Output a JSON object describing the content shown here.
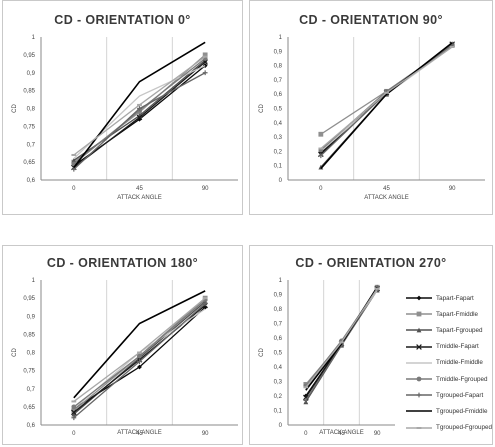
{
  "colors": {
    "Tapart-Fapart": "#0a0a0a",
    "Tapart-Fmiddle": "#8f8f8f",
    "Tapart-Fgrouped": "#505050",
    "Tmiddle-Fapart": "#1a1a1a",
    "Tmiddle-Fmiddle": "#c6c6c6",
    "Tmiddle-Fgrouped": "#7a7a7a",
    "Tgrouped-Fapart": "#666666",
    "Tgrouped-Fmiddle": "#000000",
    "Tgrouped-Fgrouped": "#a8a8a8"
  },
  "legend": {
    "entries": [
      {
        "label": "Tapart-Fapart",
        "marker": "diamond"
      },
      {
        "label": "Tapart-Fmiddle",
        "marker": "square"
      },
      {
        "label": "Tapart-Fgrouped",
        "marker": "triangle"
      },
      {
        "label": "Tmiddle-Fapart",
        "marker": "x"
      },
      {
        "label": "Tmiddle-Fmiddle",
        "marker": "none"
      },
      {
        "label": "Tmiddle-Fgrouped",
        "marker": "circle"
      },
      {
        "label": "Tgrouped-Fapart",
        "marker": "plus"
      },
      {
        "label": "Tgrouped-Fmiddle",
        "marker": "none"
      },
      {
        "label": "Tgrouped-Fgrouped",
        "marker": "dash"
      }
    ]
  },
  "chart_data": [
    {
      "type": "line",
      "title": "CD - ORIENTATION 0°",
      "xlabel": "ATTACK ANGLE",
      "ylabel": "CD",
      "categories": [
        "0",
        "45",
        "90"
      ],
      "ylim": [
        0.6,
        1.0
      ],
      "yticks": [
        "0,6",
        "0,65",
        "0,7",
        "0,75",
        "0,8",
        "0,85",
        "0,9",
        "0,95",
        "1"
      ],
      "grid": "vertical",
      "series": [
        {
          "name": "Tapart-Fapart",
          "values": [
            0.64,
            0.77,
            0.92
          ]
        },
        {
          "name": "Tapart-Fmiddle",
          "values": [
            0.65,
            0.79,
            0.95
          ]
        },
        {
          "name": "Tapart-Fgrouped",
          "values": [
            0.655,
            0.78,
            0.935
          ]
        },
        {
          "name": "Tmiddle-Fapart",
          "values": [
            0.635,
            0.775,
            0.93
          ]
        },
        {
          "name": "Tmiddle-Fmiddle",
          "values": [
            0.66,
            0.835,
            0.92
          ]
        },
        {
          "name": "Tmiddle-Fgrouped",
          "values": [
            0.645,
            0.795,
            0.94
          ]
        },
        {
          "name": "Tgrouped-Fapart",
          "values": [
            0.63,
            0.8,
            0.9
          ]
        },
        {
          "name": "Tgrouped-Fmiddle",
          "values": [
            0.635,
            0.875,
            0.985
          ]
        },
        {
          "name": "Tgrouped-Fgrouped",
          "values": [
            0.67,
            0.81,
            0.945
          ]
        }
      ]
    },
    {
      "type": "line",
      "title": "CD - ORIENTATION 90°",
      "xlabel": "ATTACK ANGLE",
      "ylabel": "CD",
      "categories": [
        "0",
        "45",
        "90"
      ],
      "ylim": [
        0,
        1.0
      ],
      "yticks": [
        "0",
        "0,1",
        "0,2",
        "0,3",
        "0,4",
        "0,5",
        "0,6",
        "0,7",
        "0,8",
        "0,9",
        "1"
      ],
      "grid": "vertical",
      "series": [
        {
          "name": "Tapart-Fapart",
          "values": [
            0.19,
            0.61,
            0.95
          ]
        },
        {
          "name": "Tapart-Fmiddle",
          "values": [
            0.32,
            0.62,
            0.94
          ]
        },
        {
          "name": "Tapart-Fgrouped",
          "values": [
            0.09,
            0.6,
            0.94
          ]
        },
        {
          "name": "Tmiddle-Fapart",
          "values": [
            0.18,
            0.61,
            0.95
          ]
        },
        {
          "name": "Tmiddle-Fmiddle",
          "values": [
            0.2,
            0.6,
            0.93
          ]
        },
        {
          "name": "Tmiddle-Fgrouped",
          "values": [
            0.21,
            0.62,
            0.94
          ]
        },
        {
          "name": "Tgrouped-Fapart",
          "values": [
            0.17,
            0.61,
            0.95
          ]
        },
        {
          "name": "Tgrouped-Fmiddle",
          "values": [
            0.08,
            0.6,
            0.96
          ]
        },
        {
          "name": "Tgrouped-Fgrouped",
          "values": [
            0.22,
            0.61,
            0.93
          ]
        }
      ]
    },
    {
      "type": "line",
      "title": "CD - ORIENTATION 180°",
      "xlabel": "ATTACK ANGLE",
      "ylabel": "CD",
      "categories": [
        "0",
        "45",
        "90"
      ],
      "ylim": [
        0.6,
        1.0
      ],
      "yticks": [
        "0,6",
        "0,65",
        "0,7",
        "0,75",
        "0,8",
        "0,85",
        "0,9",
        "0,95",
        "1"
      ],
      "grid": "vertical",
      "series": [
        {
          "name": "Tapart-Fapart",
          "values": [
            0.645,
            0.76,
            0.925
          ]
        },
        {
          "name": "Tapart-Fmiddle",
          "values": [
            0.64,
            0.79,
            0.95
          ]
        },
        {
          "name": "Tapart-Fgrouped",
          "values": [
            0.63,
            0.785,
            0.94
          ]
        },
        {
          "name": "Tmiddle-Fapart",
          "values": [
            0.635,
            0.78,
            0.93
          ]
        },
        {
          "name": "Tmiddle-Fmiddle",
          "values": [
            0.645,
            0.8,
            0.92
          ]
        },
        {
          "name": "Tmiddle-Fgrouped",
          "values": [
            0.65,
            0.79,
            0.945
          ]
        },
        {
          "name": "Tgrouped-Fapart",
          "values": [
            0.62,
            0.775,
            0.935
          ]
        },
        {
          "name": "Tgrouped-Fmiddle",
          "values": [
            0.675,
            0.88,
            0.97
          ]
        },
        {
          "name": "Tgrouped-Fgrouped",
          "values": [
            0.665,
            0.8,
            0.95
          ]
        }
      ]
    },
    {
      "type": "line",
      "title": "CD - ORIENTATION 270°",
      "xlabel": "ATTACK ANGLE",
      "ylabel": "CD",
      "categories": [
        "0",
        "45",
        "90"
      ],
      "ylim": [
        0,
        1.0
      ],
      "yticks": [
        "0",
        "0,1",
        "0,2",
        "0,3",
        "0,4",
        "0,5",
        "0,6",
        "0,7",
        "0,8",
        "0,9",
        "1"
      ],
      "grid": "vertical",
      "series": [
        {
          "name": "Tapart-Fapart",
          "values": [
            0.2,
            0.56,
            0.94
          ]
        },
        {
          "name": "Tapart-Fmiddle",
          "values": [
            0.28,
            0.57,
            0.95
          ]
        },
        {
          "name": "Tapart-Fgrouped",
          "values": [
            0.16,
            0.55,
            0.93
          ]
        },
        {
          "name": "Tmiddle-Fapart",
          "values": [
            0.19,
            0.56,
            0.94
          ]
        },
        {
          "name": "Tmiddle-Fmiddle",
          "values": [
            0.25,
            0.57,
            0.93
          ]
        },
        {
          "name": "Tmiddle-Fgrouped",
          "values": [
            0.27,
            0.58,
            0.94
          ]
        },
        {
          "name": "Tgrouped-Fapart",
          "values": [
            0.17,
            0.55,
            0.95
          ]
        },
        {
          "name": "Tgrouped-Fmiddle",
          "values": [
            0.24,
            0.56,
            0.95
          ]
        },
        {
          "name": "Tgrouped-Fgrouped",
          "values": [
            0.26,
            0.57,
            0.94
          ]
        }
      ]
    }
  ]
}
